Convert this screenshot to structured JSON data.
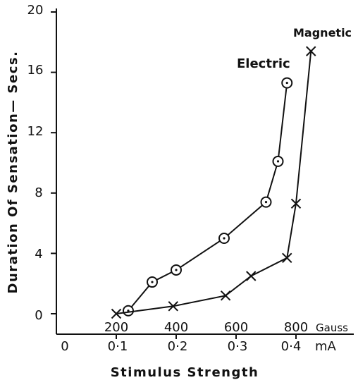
{
  "chart_data": {
    "type": "line",
    "title": "",
    "ylabel": "Duration Of Sensation— Secs.",
    "xlabel": "Stimulus Strength",
    "ylim": [
      0,
      20
    ],
    "yticks": [
      "0",
      "4",
      "8",
      "12",
      "16",
      "20"
    ],
    "x_axis_mA": {
      "unit": "mA",
      "range": [
        0,
        0.48
      ],
      "ticks": [
        "0",
        "0·1",
        "0·2",
        "0·3",
        "0·4"
      ]
    },
    "x_axis_gauss": {
      "unit": "Gauss",
      "ticks": [
        "200",
        "400",
        "600",
        "800"
      ]
    },
    "grid": false,
    "series": [
      {
        "name": "Electric",
        "marker": "circle",
        "x_mA": [
          0.12,
          0.16,
          0.2,
          0.28,
          0.35,
          0.37,
          0.385
        ],
        "y": [
          0.2,
          2.1,
          2.9,
          5.0,
          7.4,
          10.1,
          15.3
        ]
      },
      {
        "name": "Magnetic",
        "marker": "x",
        "x_gauss": [
          200,
          390,
          565,
          650,
          770,
          800,
          850
        ],
        "y": [
          0.0,
          0.5,
          1.2,
          2.5,
          3.7,
          7.3,
          17.4
        ]
      }
    ]
  }
}
